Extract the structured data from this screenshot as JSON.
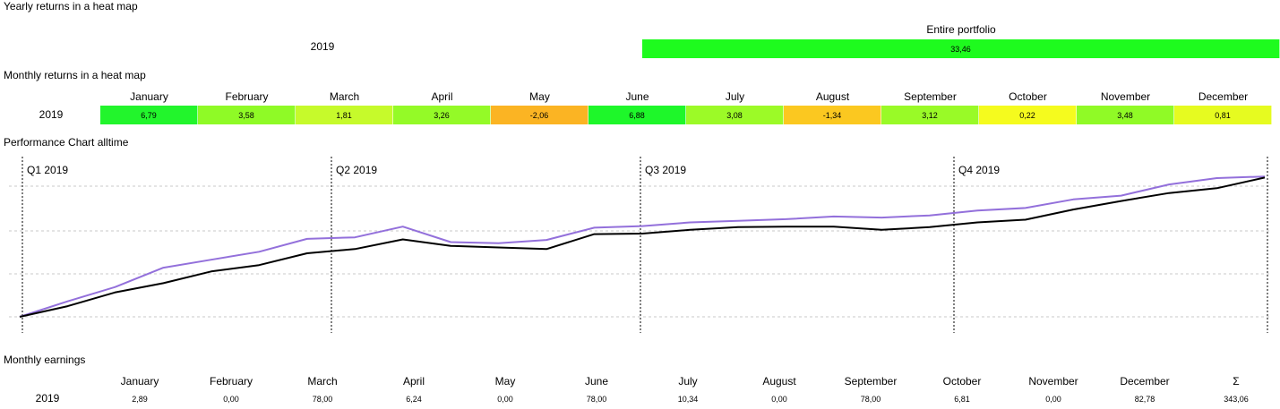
{
  "yearly": {
    "title": "Yearly returns in a heat map",
    "year": "2019",
    "header": "Entire portfolio",
    "value": "33,46",
    "color": "#1efb1e"
  },
  "monthly": {
    "title": "Monthly returns in a heat map",
    "year": "2019",
    "cells": [
      {
        "month": "January",
        "value": "6,79",
        "color": "#22f52c"
      },
      {
        "month": "February",
        "value": "3,58",
        "color": "#8ffa26"
      },
      {
        "month": "March",
        "value": "1,81",
        "color": "#c6fa2b"
      },
      {
        "month": "April",
        "value": "3,26",
        "color": "#94fa27"
      },
      {
        "month": "May",
        "value": "-2,06",
        "color": "#fbb423"
      },
      {
        "month": "June",
        "value": "6,88",
        "color": "#1ef72a"
      },
      {
        "month": "July",
        "value": "3,08",
        "color": "#9cfa27"
      },
      {
        "month": "August",
        "value": "-1,34",
        "color": "#fbc820"
      },
      {
        "month": "September",
        "value": "3,12",
        "color": "#99fa27"
      },
      {
        "month": "October",
        "value": "0,22",
        "color": "#f5fb1e"
      },
      {
        "month": "November",
        "value": "3,48",
        "color": "#90fa26"
      },
      {
        "month": "December",
        "value": "0,81",
        "color": "#e6fb20"
      }
    ]
  },
  "performance": {
    "title": "Performance Chart alltime",
    "quarters": [
      "Q1 2019",
      "Q2 2019",
      "Q3 2019",
      "Q4 2019"
    ]
  },
  "chart_data": {
    "type": "line",
    "x": [
      0,
      2,
      4,
      6,
      8,
      10,
      12,
      14,
      16,
      18,
      20,
      22,
      24,
      26,
      28,
      30,
      32,
      34,
      36,
      38,
      40,
      42,
      44,
      46,
      48,
      50,
      52
    ],
    "series": [
      {
        "color": "#000000",
        "values": [
          0,
          2.0,
          4.6,
          6.3,
          8.5,
          9.7,
          11.9,
          12.7,
          14.5,
          13.3,
          13.0,
          12.7,
          15.5,
          15.6,
          16.3,
          16.8,
          16.9,
          16.9,
          16.3,
          16.8,
          17.7,
          18.2,
          20.1,
          21.7,
          23.2,
          24.1,
          26.1
        ]
      },
      {
        "color": "#9370db",
        "values": [
          0,
          2.9,
          5.6,
          9.2,
          10.7,
          12.2,
          14.6,
          14.9,
          16.9,
          14.0,
          13.8,
          14.4,
          16.7,
          17.0,
          17.7,
          18.0,
          18.3,
          18.8,
          18.6,
          19.0,
          19.9,
          20.4,
          22.0,
          22.7,
          24.8,
          26.0,
          26.3
        ]
      }
    ],
    "grid": true,
    "legend": "none"
  },
  "earnings": {
    "title": "Monthly earnings",
    "year": "2019",
    "headers": [
      "January",
      "February",
      "March",
      "April",
      "May",
      "June",
      "July",
      "August",
      "September",
      "October",
      "November",
      "December",
      "Σ"
    ],
    "values": [
      "2,89",
      "0,00",
      "78,00",
      "6,24",
      "0,00",
      "78,00",
      "10,34",
      "0,00",
      "78,00",
      "6,81",
      "0,00",
      "82,78",
      "343,06"
    ]
  }
}
